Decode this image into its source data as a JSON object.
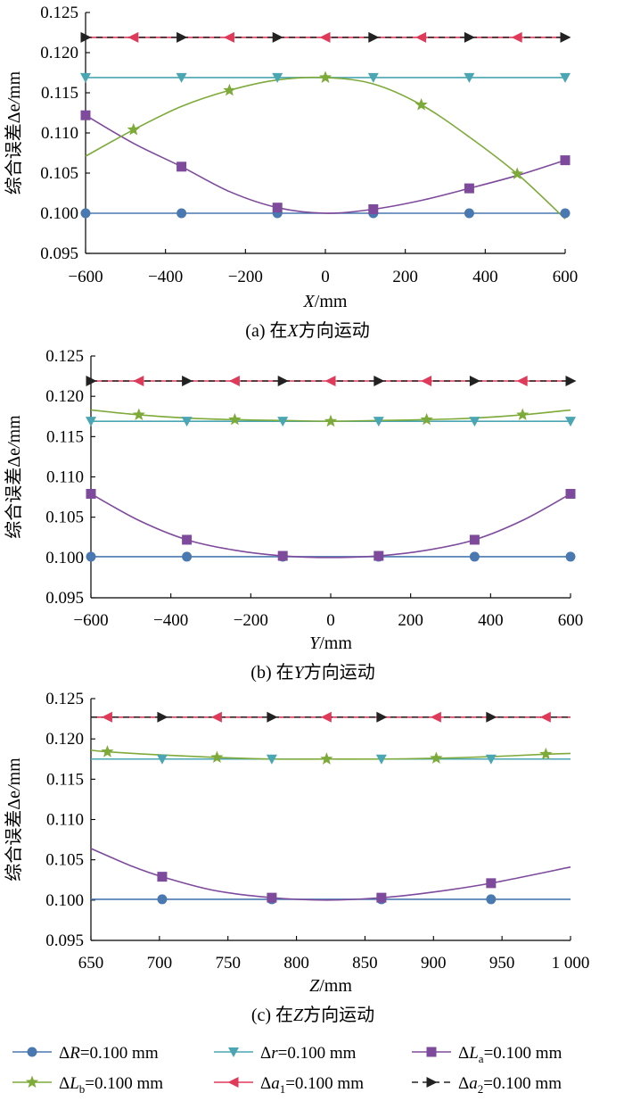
{
  "colors": {
    "dR": "#4a78b0",
    "dr": "#4aa6b2",
    "dLa": "#7e4a9c",
    "dLb": "#7eaa3a",
    "da1": "#e03a5a",
    "da2": "#222222"
  },
  "legend": {
    "placement": "bottom",
    "entries": [
      {
        "key": "dR",
        "symbol": "ΔR",
        "sub": "",
        "value": "=0.100 mm",
        "marker": "circle",
        "dashed": false
      },
      {
        "key": "dr",
        "symbol": "Δr",
        "sub": "",
        "value": "=0.100 mm",
        "marker": "triDown",
        "dashed": false
      },
      {
        "key": "dLa",
        "symbol": "ΔL",
        "sub": "a",
        "value": "=0.100 mm",
        "marker": "square",
        "dashed": false
      },
      {
        "key": "dLb",
        "symbol": "ΔL",
        "sub": "b",
        "value": "=0.100 mm",
        "marker": "star",
        "dashed": false
      },
      {
        "key": "da1",
        "symbol": "Δa",
        "sub": "1",
        "value": "=0.100 mm",
        "marker": "triLeft",
        "dashed": false
      },
      {
        "key": "da2",
        "symbol": "Δa",
        "sub": "2",
        "value": "=0.100 mm",
        "marker": "triRight",
        "dashed": true
      }
    ]
  },
  "chart_data": [
    {
      "type": "line",
      "caption": "(a) 在X方向运动",
      "xlabel": "X/mm",
      "ylabel": "综合误差Δe/mm",
      "xlim": [
        -600,
        600
      ],
      "ylim": [
        0.095,
        0.125
      ],
      "xticks": [
        -600,
        -400,
        -200,
        0,
        200,
        400,
        600
      ],
      "xtick_labels": [
        "−600",
        "−400",
        "−200",
        "0",
        "200",
        "400",
        "600"
      ],
      "yticks": [
        0.095,
        0.1,
        0.105,
        0.11,
        0.115,
        0.12,
        0.125
      ],
      "ytick_labels": [
        "0.095",
        "0.100",
        "0.105",
        "0.110",
        "0.115",
        "0.120",
        "0.125"
      ],
      "grid": false,
      "series": [
        {
          "key": "dR",
          "name": "ΔR=0.100 mm",
          "x": [
            -600,
            600
          ],
          "y": [
            0.1,
            0.1
          ],
          "markers_x": [
            -600,
            -360,
            -120,
            120,
            360,
            600
          ]
        },
        {
          "key": "dr",
          "name": "Δr=0.100 mm",
          "x": [
            -600,
            600
          ],
          "y": [
            0.1169,
            0.1169
          ],
          "markers_x": [
            -600,
            -360,
            -120,
            120,
            360,
            600
          ]
        },
        {
          "key": "dLa",
          "name": "ΔLa=0.100 mm",
          "x": [
            -600,
            -480,
            -360,
            -240,
            -120,
            0,
            120,
            240,
            360,
            480,
            600
          ],
          "y": [
            0.1122,
            0.1087,
            0.1058,
            0.1027,
            0.1007,
            0.1,
            0.1005,
            0.1016,
            0.1031,
            0.1047,
            0.1066
          ],
          "markers_x": [
            -600,
            -360,
            -120,
            120,
            360,
            600
          ]
        },
        {
          "key": "dLb",
          "name": "ΔLb=0.100 mm",
          "x": [
            -600,
            -480,
            -360,
            -240,
            -120,
            0,
            120,
            240,
            360,
            480,
            600
          ],
          "y": [
            0.1071,
            0.1104,
            0.1133,
            0.1153,
            0.1166,
            0.1169,
            0.1161,
            0.1135,
            0.1095,
            0.1049,
            0.0993
          ],
          "markers_x": [
            -480,
            -240,
            0,
            240,
            480
          ]
        },
        {
          "key": "da1",
          "name": "Δa1=0.100 mm",
          "x": [
            -600,
            600
          ],
          "y": [
            0.1219,
            0.1219
          ],
          "markers_x": [
            -480,
            -240,
            0,
            240,
            480
          ]
        },
        {
          "key": "da2",
          "name": "Δa2=0.100 mm",
          "x": [
            -600,
            600
          ],
          "y": [
            0.1219,
            0.1219
          ],
          "markers_x": [
            -600,
            -360,
            -120,
            120,
            360,
            600
          ]
        }
      ]
    },
    {
      "type": "line",
      "caption": "(b) 在Y方向运动",
      "xlabel": "Y/mm",
      "ylabel": "综合误差Δe/mm",
      "xlim": [
        -600,
        600
      ],
      "ylim": [
        0.095,
        0.125
      ],
      "xticks": [
        -600,
        -400,
        -200,
        0,
        200,
        400,
        600
      ],
      "xtick_labels": [
        "−600",
        "−400",
        "−200",
        "0",
        "200",
        "400",
        "600"
      ],
      "yticks": [
        0.095,
        0.1,
        0.105,
        0.11,
        0.115,
        0.12,
        0.125
      ],
      "ytick_labels": [
        "0.095",
        "0.100",
        "0.105",
        "0.110",
        "0.115",
        "0.120",
        "0.125"
      ],
      "grid": false,
      "series": [
        {
          "key": "dR",
          "name": "ΔR=0.100 mm",
          "x": [
            -600,
            600
          ],
          "y": [
            0.1001,
            0.1001
          ],
          "markers_x": [
            -600,
            -360,
            -120,
            120,
            360,
            600
          ]
        },
        {
          "key": "dr",
          "name": "Δr=0.100 mm",
          "x": [
            -600,
            600
          ],
          "y": [
            0.1169,
            0.1169
          ],
          "markers_x": [
            -600,
            -360,
            -120,
            120,
            360,
            600
          ]
        },
        {
          "key": "dLa",
          "name": "ΔLa=0.100 mm",
          "x": [
            -600,
            -480,
            -360,
            -240,
            -120,
            0,
            120,
            240,
            360,
            480,
            600
          ],
          "y": [
            0.1079,
            0.1046,
            0.1022,
            0.1009,
            0.1002,
            0.1,
            0.1002,
            0.1009,
            0.1022,
            0.1046,
            0.1079
          ],
          "markers_x": [
            -600,
            -360,
            -120,
            120,
            360,
            600
          ]
        },
        {
          "key": "dLb",
          "name": "ΔLb=0.100 mm",
          "x": [
            -600,
            -480,
            -360,
            -240,
            -120,
            0,
            120,
            240,
            360,
            480,
            600
          ],
          "y": [
            0.1183,
            0.1177,
            0.1173,
            0.1171,
            0.117,
            0.1169,
            0.117,
            0.1171,
            0.1173,
            0.1177,
            0.1183
          ],
          "markers_x": [
            -480,
            -240,
            0,
            240,
            480
          ]
        },
        {
          "key": "da1",
          "name": "Δa1=0.100 mm",
          "x": [
            -600,
            600
          ],
          "y": [
            0.1219,
            0.1219
          ],
          "markers_x": [
            -480,
            -240,
            0,
            240,
            480
          ]
        },
        {
          "key": "da2",
          "name": "Δa2=0.100 mm",
          "x": [
            -600,
            600
          ],
          "y": [
            0.1219,
            0.1219
          ],
          "markers_x": [
            -600,
            -360,
            -120,
            120,
            360,
            600
          ]
        }
      ]
    },
    {
      "type": "line",
      "caption": "(c) 在Z方向运动",
      "xlabel": "Z/mm",
      "ylabel": "综合误差Δe/mm",
      "xlim": [
        650,
        1000
      ],
      "ylim": [
        0.095,
        0.125
      ],
      "xticks": [
        650,
        700,
        750,
        800,
        850,
        900,
        950,
        1000
      ],
      "xtick_labels": [
        "650",
        "700",
        "750",
        "800",
        "850",
        "900",
        "950",
        "1 000"
      ],
      "yticks": [
        0.095,
        0.1,
        0.105,
        0.11,
        0.115,
        0.12,
        0.125
      ],
      "ytick_labels": [
        "0.095",
        "0.100",
        "0.105",
        "0.110",
        "0.115",
        "0.120",
        "0.125"
      ],
      "grid": false,
      "series": [
        {
          "key": "dR",
          "name": "ΔR=0.100 mm",
          "x": [
            650,
            1000
          ],
          "y": [
            0.1001,
            0.1001
          ],
          "markers_x": [
            702,
            782,
            862,
            942
          ]
        },
        {
          "key": "dr",
          "name": "Δr=0.100 mm",
          "x": [
            650,
            1000
          ],
          "y": [
            0.1175,
            0.1175
          ],
          "markers_x": [
            702,
            782,
            862,
            942
          ]
        },
        {
          "key": "dLa",
          "name": "ΔLa=0.100 mm",
          "x": [
            650,
            680,
            702,
            740,
            782,
            822,
            862,
            900,
            942,
            1000
          ],
          "y": [
            0.1064,
            0.1042,
            0.1029,
            0.1012,
            0.1003,
            0.1,
            0.1003,
            0.101,
            0.1021,
            0.1041
          ],
          "markers_x": [
            702,
            782,
            862,
            942
          ]
        },
        {
          "key": "dLb",
          "name": "ΔLb=0.100 mm",
          "x": [
            650,
            662,
            702,
            742,
            782,
            822,
            862,
            902,
            942,
            982,
            1000
          ],
          "y": [
            0.1186,
            0.1184,
            0.118,
            0.1177,
            0.1175,
            0.1175,
            0.1175,
            0.1176,
            0.1178,
            0.1181,
            0.1182
          ],
          "markers_x": [
            662,
            742,
            822,
            902,
            982
          ]
        },
        {
          "key": "da1",
          "name": "Δa1=0.100 mm",
          "x": [
            650,
            1000
          ],
          "y": [
            0.1227,
            0.1227
          ],
          "markers_x": [
            662,
            742,
            822,
            902,
            982
          ]
        },
        {
          "key": "da2",
          "name": "Δa2=0.100 mm",
          "x": [
            650,
            1000
          ],
          "y": [
            0.1227,
            0.1227
          ],
          "markers_x": [
            702,
            782,
            862,
            942
          ]
        }
      ]
    }
  ]
}
